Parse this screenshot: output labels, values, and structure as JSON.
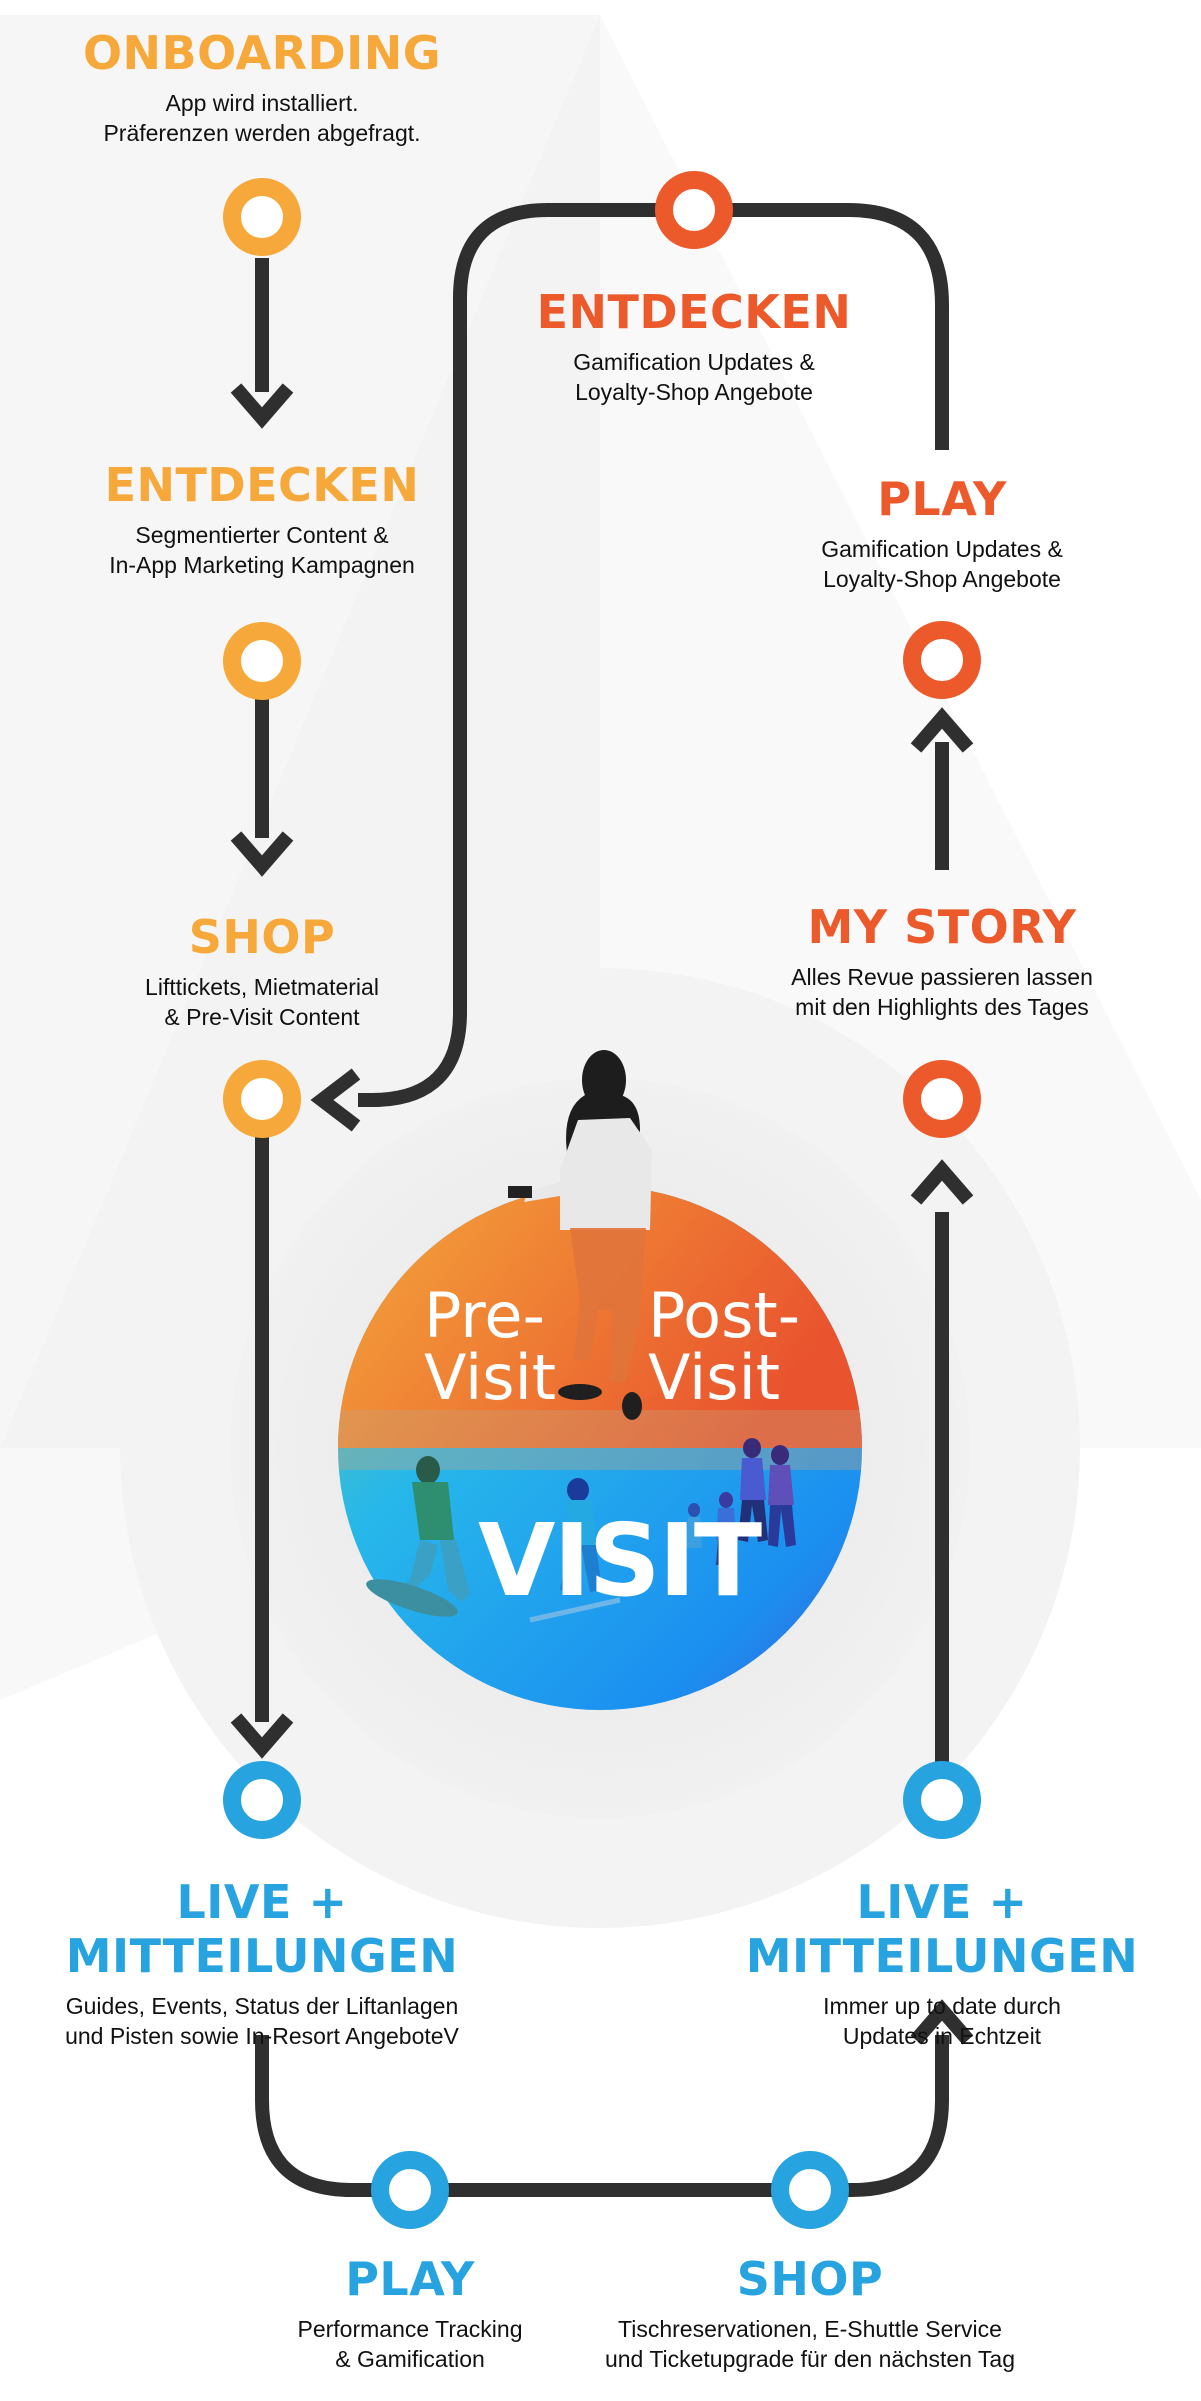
{
  "colors": {
    "yellow": "#f6a83a",
    "orange": "#ec5a2b",
    "blue": "#27a3e0",
    "line": "#2f2f2f"
  },
  "steps": {
    "onboarding": {
      "title": "ONBOARDING",
      "desc": "App wird installiert.\nPräferenzen werden abgefragt."
    },
    "entdecken_pre": {
      "title": "ENTDECKEN",
      "desc": "Segmentierter Content &\nIn-App Marketing Kampagnen"
    },
    "shop_pre": {
      "title": "SHOP",
      "desc": "Lifttickets, Mietmaterial\n& Pre-Visit Content"
    },
    "entdecken_post": {
      "title": "ENTDECKEN",
      "desc": "Gamification Updates &\nLoyalty-Shop Angebote"
    },
    "play_post": {
      "title": "PLAY",
      "desc": "Gamification Updates &\nLoyalty-Shop Angebote"
    },
    "my_story": {
      "title": "MY STORY",
      "desc": "Alles Revue passieren lassen\nmit den Highlights des Tages"
    },
    "live_left": {
      "title": "LIVE + MITTEILUNGEN",
      "desc": "Guides, Events, Status der Liftanlagen\nund Pisten sowie In-Resort AngeboteV"
    },
    "live_right": {
      "title": "LIVE + MITTEILUNGEN",
      "desc": "Immer up to date durch\nUpdates in Echtzeit"
    },
    "play_visit": {
      "title": "PLAY",
      "desc": "Performance Tracking\n& Gamification"
    },
    "shop_visit": {
      "title": "SHOP",
      "desc": "Tischreservationen, E-Shuttle Service\nund Ticketupgrade für den nächsten Tag"
    }
  },
  "center": {
    "pre_visit": "Pre-\nVisit",
    "post_visit": "Post-\nVisit",
    "visit": "VISIT"
  }
}
